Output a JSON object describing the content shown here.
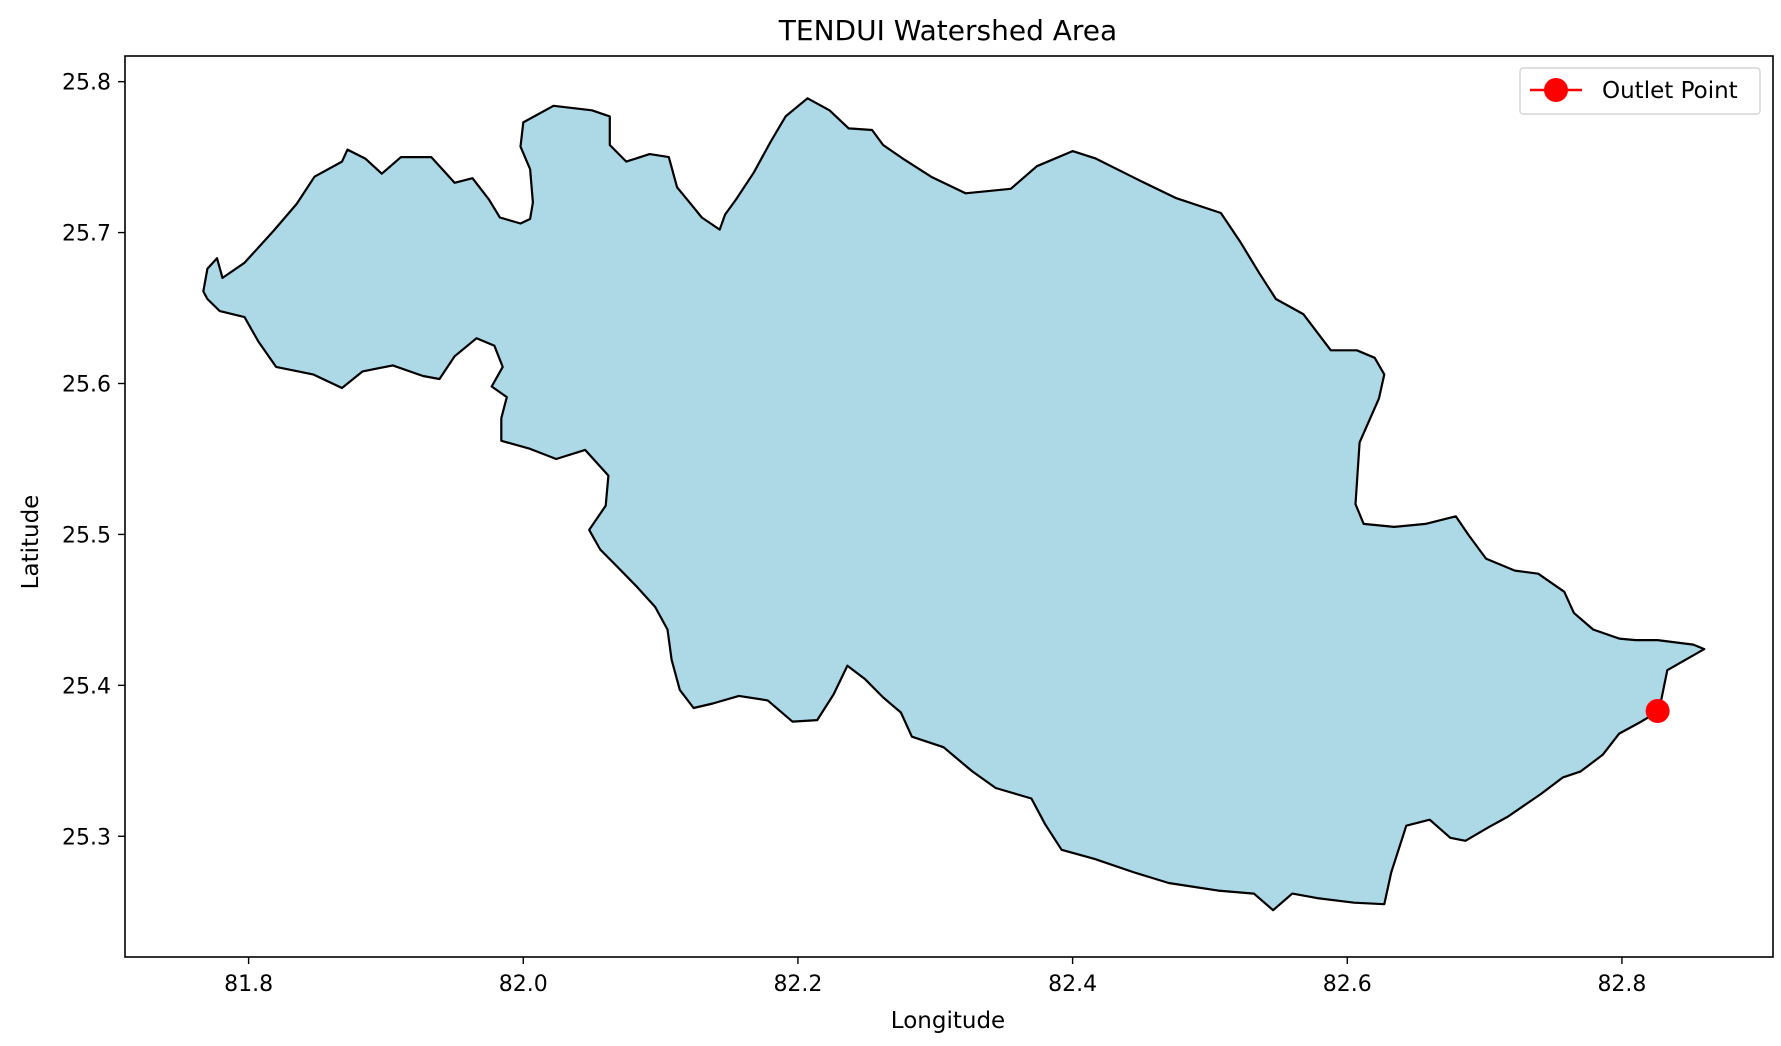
{
  "chart_data": {
    "type": "map",
    "title": "TENDUI Watershed Area",
    "xlabel": "Longitude",
    "ylabel": "Latitude",
    "xlim": [
      81.71,
      82.91
    ],
    "ylim": [
      25.22,
      25.817
    ],
    "xticks": [
      81.8,
      82.0,
      82.2,
      82.4,
      82.6,
      82.8
    ],
    "xtick_labels": [
      "81.8",
      "82.0",
      "82.2",
      "82.4",
      "82.6",
      "82.8"
    ],
    "yticks": [
      25.3,
      25.4,
      25.5,
      25.6,
      25.7,
      25.8
    ],
    "ytick_labels": [
      "25.3",
      "25.4",
      "25.5",
      "25.6",
      "25.7",
      "25.8"
    ],
    "grid": false,
    "legend_position": "top-right",
    "watershed": {
      "fill_color": "#add8e6",
      "edge_color": "#000000",
      "boundary": [
        [
          81.767,
          25.661
        ],
        [
          81.77,
          25.676
        ],
        [
          81.777,
          25.683
        ],
        [
          81.781,
          25.67
        ],
        [
          81.797,
          25.68
        ],
        [
          81.818,
          25.701
        ],
        [
          81.835,
          25.719
        ],
        [
          81.848,
          25.737
        ],
        [
          81.868,
          25.747
        ],
        [
          81.872,
          25.755
        ],
        [
          81.885,
          25.749
        ],
        [
          81.897,
          25.739
        ],
        [
          81.911,
          25.75
        ],
        [
          81.933,
          25.75
        ],
        [
          81.95,
          25.733
        ],
        [
          81.963,
          25.736
        ],
        [
          81.975,
          25.722
        ],
        [
          81.983,
          25.71
        ],
        [
          81.998,
          25.706
        ],
        [
          82.005,
          25.709
        ],
        [
          82.007,
          25.72
        ],
        [
          82.005,
          25.742
        ],
        [
          81.998,
          25.757
        ],
        [
          82.0,
          25.773
        ],
        [
          82.022,
          25.784
        ],
        [
          82.05,
          25.781
        ],
        [
          82.063,
          25.777
        ],
        [
          82.063,
          25.758
        ],
        [
          82.075,
          25.747
        ],
        [
          82.092,
          25.752
        ],
        [
          82.106,
          25.75
        ],
        [
          82.112,
          25.73
        ],
        [
          82.122,
          25.719
        ],
        [
          82.13,
          25.71
        ],
        [
          82.143,
          25.702
        ],
        [
          82.147,
          25.712
        ],
        [
          82.155,
          25.722
        ],
        [
          82.168,
          25.74
        ],
        [
          82.18,
          25.76
        ],
        [
          82.191,
          25.777
        ],
        [
          82.207,
          25.789
        ],
        [
          82.223,
          25.781
        ],
        [
          82.237,
          25.769
        ],
        [
          82.254,
          25.768
        ],
        [
          82.262,
          25.758
        ],
        [
          82.278,
          25.748
        ],
        [
          82.297,
          25.737
        ],
        [
          82.322,
          25.726
        ],
        [
          82.355,
          25.729
        ],
        [
          82.374,
          25.744
        ],
        [
          82.4,
          25.754
        ],
        [
          82.417,
          25.749
        ],
        [
          82.45,
          25.734
        ],
        [
          82.475,
          25.723
        ],
        [
          82.508,
          25.713
        ],
        [
          82.522,
          25.694
        ],
        [
          82.536,
          25.673
        ],
        [
          82.548,
          25.656
        ],
        [
          82.568,
          25.646
        ],
        [
          82.588,
          25.622
        ],
        [
          82.607,
          25.622
        ],
        [
          82.62,
          25.617
        ],
        [
          82.627,
          25.606
        ],
        [
          82.623,
          25.59
        ],
        [
          82.609,
          25.561
        ],
        [
          82.606,
          25.52
        ],
        [
          82.612,
          25.507
        ],
        [
          82.634,
          25.505
        ],
        [
          82.657,
          25.507
        ],
        [
          82.679,
          25.512
        ],
        [
          82.688,
          25.5
        ],
        [
          82.701,
          25.484
        ],
        [
          82.722,
          25.476
        ],
        [
          82.739,
          25.474
        ],
        [
          82.758,
          25.462
        ],
        [
          82.765,
          25.448
        ],
        [
          82.779,
          25.437
        ],
        [
          82.798,
          25.431
        ],
        [
          82.81,
          25.43
        ],
        [
          82.826,
          25.43
        ],
        [
          82.852,
          25.427
        ],
        [
          82.86,
          25.424
        ],
        [
          82.833,
          25.41
        ],
        [
          82.827,
          25.383
        ],
        [
          82.814,
          25.376
        ],
        [
          82.798,
          25.368
        ],
        [
          82.786,
          25.354
        ],
        [
          82.77,
          25.343
        ],
        [
          82.757,
          25.339
        ],
        [
          82.741,
          25.328
        ],
        [
          82.717,
          25.313
        ],
        [
          82.703,
          25.306
        ],
        [
          82.686,
          25.297
        ],
        [
          82.675,
          25.299
        ],
        [
          82.66,
          25.311
        ],
        [
          82.643,
          25.307
        ],
        [
          82.632,
          25.276
        ],
        [
          82.627,
          25.255
        ],
        [
          82.605,
          25.256
        ],
        [
          82.578,
          25.259
        ],
        [
          82.56,
          25.262
        ],
        [
          82.546,
          25.251
        ],
        [
          82.532,
          25.262
        ],
        [
          82.506,
          25.264
        ],
        [
          82.47,
          25.269
        ],
        [
          82.445,
          25.276
        ],
        [
          82.416,
          25.285
        ],
        [
          82.392,
          25.291
        ],
        [
          82.38,
          25.308
        ],
        [
          82.37,
          25.325
        ],
        [
          82.344,
          25.332
        ],
        [
          82.327,
          25.343
        ],
        [
          82.306,
          25.359
        ],
        [
          82.283,
          25.366
        ],
        [
          82.275,
          25.382
        ],
        [
          82.262,
          25.392
        ],
        [
          82.249,
          25.404
        ],
        [
          82.236,
          25.413
        ],
        [
          82.226,
          25.394
        ],
        [
          82.214,
          25.377
        ],
        [
          82.196,
          25.376
        ],
        [
          82.178,
          25.39
        ],
        [
          82.157,
          25.393
        ],
        [
          82.138,
          25.388
        ],
        [
          82.124,
          25.385
        ],
        [
          82.114,
          25.397
        ],
        [
          82.108,
          25.417
        ],
        [
          82.105,
          25.437
        ],
        [
          82.096,
          25.452
        ],
        [
          82.083,
          25.465
        ],
        [
          82.068,
          25.479
        ],
        [
          82.056,
          25.49
        ],
        [
          82.048,
          25.503
        ],
        [
          82.06,
          25.519
        ],
        [
          82.062,
          25.539
        ],
        [
          82.045,
          25.556
        ],
        [
          82.024,
          25.55
        ],
        [
          82.004,
          25.557
        ],
        [
          81.984,
          25.562
        ],
        [
          81.984,
          25.577
        ],
        [
          81.988,
          25.591
        ],
        [
          81.977,
          25.598
        ],
        [
          81.985,
          25.611
        ],
        [
          81.979,
          25.625
        ],
        [
          81.966,
          25.63
        ],
        [
          81.95,
          25.618
        ],
        [
          81.939,
          25.603
        ],
        [
          81.927,
          25.605
        ],
        [
          81.905,
          25.612
        ],
        [
          81.883,
          25.608
        ],
        [
          81.868,
          25.597
        ],
        [
          81.847,
          25.606
        ],
        [
          81.82,
          25.611
        ],
        [
          81.807,
          25.628
        ],
        [
          81.797,
          25.644
        ],
        [
          81.779,
          25.648
        ],
        [
          81.77,
          25.656
        ]
      ]
    },
    "series": [
      {
        "name": "Outlet Point",
        "type": "point",
        "x": [
          82.826
        ],
        "y": [
          25.383
        ],
        "color": "#ff0000"
      }
    ]
  }
}
